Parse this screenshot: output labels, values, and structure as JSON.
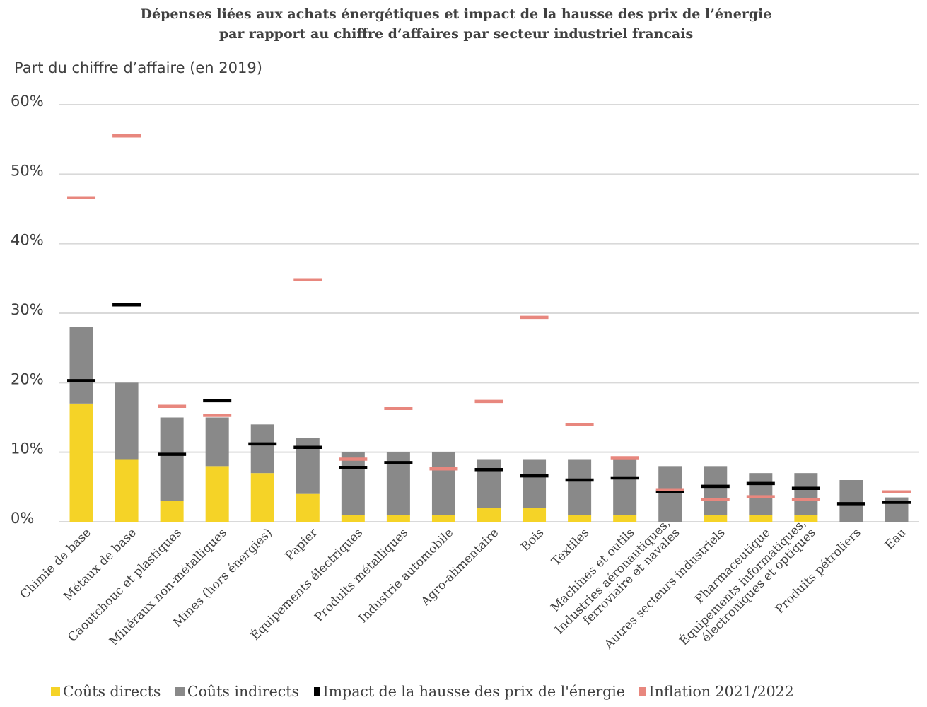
{
  "chart_data": {
    "type": "bar",
    "stacked": true,
    "title": [
      "Dépenses liées aux achats énergétiques et impact de la hausse des prix de l’énergie",
      "par rapport au chiffre d’affaires par secteur industriel francais"
    ],
    "ylabel": "Part du chiffre d’affaire (en 2019)",
    "ylim": [
      0,
      60
    ],
    "yticks": [
      "0%",
      "10%",
      "20%",
      "30%",
      "40%",
      "50%",
      "60%"
    ],
    "grid": true,
    "legend_position": "bottom",
    "categories": [
      [
        "Chimie de base"
      ],
      [
        "Métaux de base"
      ],
      [
        "Caoutchouc et plastiques"
      ],
      [
        "Minéraux non-métalliques"
      ],
      [
        "Mines (hors énergies)"
      ],
      [
        "Papier"
      ],
      [
        "Équipements électriques"
      ],
      [
        "Produits métalliques"
      ],
      [
        "Industrie automobile"
      ],
      [
        "Agro-alimentaire"
      ],
      [
        "Bois"
      ],
      [
        "Textiles"
      ],
      [
        "Machines et outils"
      ],
      [
        "Industries aéronautiques,",
        "ferroviaire et navales"
      ],
      [
        "Autres secteurs industriels"
      ],
      [
        "Pharmaceutique"
      ],
      [
        "Équipements informatiques,",
        "électroniques et optiques"
      ],
      [
        "Produits pétroliers"
      ],
      [
        "Eau"
      ]
    ],
    "series": [
      {
        "name": "Coûts directs",
        "color": "#f5d327",
        "kind": "bar",
        "values": [
          17,
          9,
          3,
          8,
          7,
          4,
          1,
          1,
          1,
          2,
          2,
          1,
          1,
          0,
          1,
          1,
          1,
          0,
          0
        ]
      },
      {
        "name": "Coûts indirects",
        "color": "#898989",
        "kind": "bar",
        "values": [
          11,
          11,
          12,
          7,
          7,
          8,
          9,
          9,
          9,
          7,
          7,
          8,
          8,
          8,
          7,
          6,
          6,
          6,
          3.5
        ]
      },
      {
        "name": "Impact de la hausse des prix de l'énergie",
        "color": "#000000",
        "kind": "marker",
        "values": [
          20.3,
          31.2,
          9.7,
          17.4,
          11.2,
          10.7,
          7.8,
          8.5,
          null,
          7.5,
          6.6,
          6.0,
          6.3,
          4.3,
          5.1,
          5.5,
          4.8,
          2.6,
          2.8
        ]
      },
      {
        "name": "Inflation 2021/2022",
        "color": "#e8877e",
        "kind": "marker",
        "values": [
          46.6,
          55.5,
          16.6,
          15.3,
          null,
          34.8,
          9.0,
          16.3,
          7.6,
          17.3,
          29.4,
          14.0,
          9.2,
          4.6,
          3.2,
          3.6,
          3.2,
          null,
          4.3
        ]
      }
    ]
  }
}
